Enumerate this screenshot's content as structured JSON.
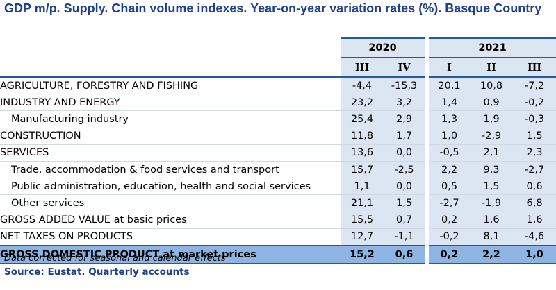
{
  "title": "GDP m/p. Supply. Chain volume indexes. Year-on-year variation rates (%). Basque Country",
  "years": [
    "2020",
    "2021"
  ],
  "quarters": [
    "III",
    "IV",
    "I",
    "II",
    "III"
  ],
  "rows": [
    {
      "label": "AGRICULTURE, FORESTRY AND FISHING",
      "values": [
        "-4,4",
        "-15,3",
        "20,1",
        "10,8",
        "-7,2"
      ]
    },
    {
      "label": "INDUSTRY AND ENERGY",
      "values": [
        "23,2",
        "3,2",
        "1,4",
        "0,9",
        "-0,2"
      ]
    },
    {
      "label": "Manufacturing industry",
      "values": [
        "25,4",
        "2,9",
        "1,3",
        "1,9",
        "-0,3"
      ]
    },
    {
      "label": "CONSTRUCTION",
      "values": [
        "11,8",
        "1,7",
        "1,0",
        "-2,9",
        "1,5"
      ]
    },
    {
      "label": "SERVICES",
      "values": [
        "13,6",
        "0,0",
        "-0,5",
        "2,1",
        "2,3"
      ]
    },
    {
      "label": "Trade, accommodation & food services and transport",
      "values": [
        "15,7",
        "-2,5",
        "2,2",
        "9,3",
        "-2,7"
      ]
    },
    {
      "label": "Public administration, education, health and social services",
      "values": [
        "1,1",
        "0,0",
        "0,5",
        "1,5",
        "0,6"
      ]
    },
    {
      "label": "Other services",
      "values": [
        "21,1",
        "1,5",
        "-2,7",
        "-1,9",
        "6,8"
      ]
    },
    {
      "label": "GROSS ADDED VALUE at basic prices",
      "values": [
        "15,5",
        "0,7",
        "0,2",
        "1,6",
        "1,6"
      ]
    },
    {
      "label": "NET TAXES ON PRODUCTS",
      "values": [
        "12,7",
        "-1,1",
        "-0,2",
        "8,1",
        "-4,6"
      ]
    }
  ],
  "total": {
    "label": "GROSS DOMESTIC PRODUCT at market prices",
    "values": [
      "15,2",
      "0,6",
      "0,2",
      "2,2",
      "1,0"
    ]
  },
  "note": "Data corrected for seasonal and calendar effects",
  "source": "Source: Eustat. Quarterly accounts",
  "colors": {
    "title": "#1f3f8f",
    "header_fill": "#dce6f2",
    "total_fill": "#8db4e2",
    "rule": "#1f5c9e"
  }
}
